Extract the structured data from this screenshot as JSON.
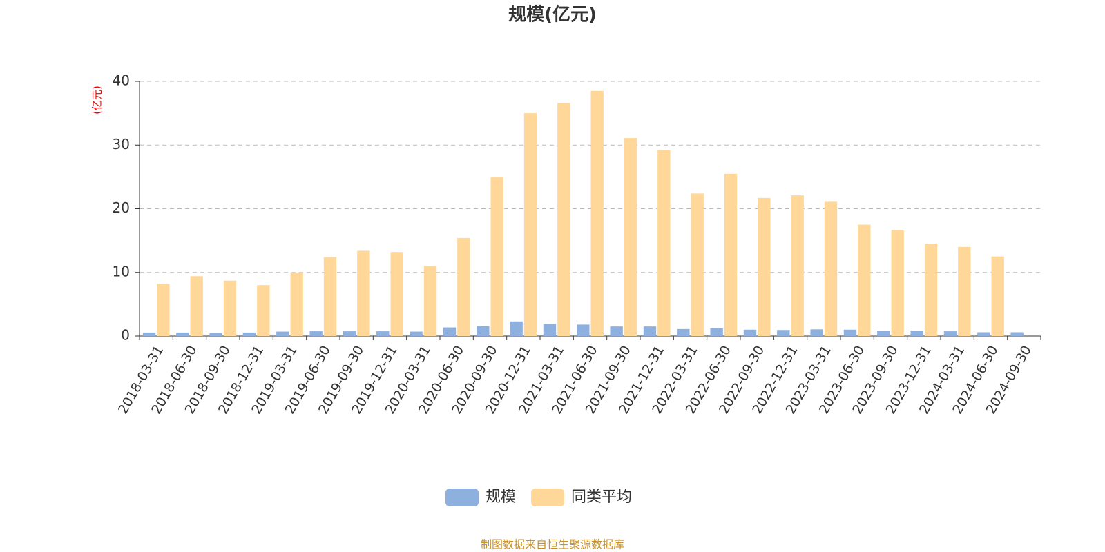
{
  "chart_data": {
    "type": "bar",
    "title": "规模(亿元)",
    "y_axis_label": "(亿元)",
    "source": "制图数据来自恒生聚源数据库",
    "categories": [
      "2018-03-31",
      "2018-06-30",
      "2018-09-30",
      "2018-12-31",
      "2019-03-31",
      "2019-06-30",
      "2019-09-30",
      "2019-12-31",
      "2020-03-31",
      "2020-06-30",
      "2020-09-30",
      "2020-12-31",
      "2021-03-31",
      "2021-06-30",
      "2021-09-30",
      "2021-12-31",
      "2022-03-31",
      "2022-06-30",
      "2022-09-30",
      "2022-12-31",
      "2023-03-31",
      "2023-06-30",
      "2023-09-30",
      "2023-12-31",
      "2024-03-31",
      "2024-06-30",
      "2024-09-30"
    ],
    "series": [
      {
        "name": "规模",
        "color": "#8eb0de",
        "values": [
          0.55,
          0.55,
          0.5,
          0.55,
          0.7,
          0.75,
          0.75,
          0.75,
          0.7,
          1.35,
          1.55,
          2.3,
          1.9,
          1.8,
          1.5,
          1.5,
          1.1,
          1.2,
          1.0,
          0.95,
          1.05,
          1.0,
          0.85,
          0.85,
          0.75,
          0.6,
          0.6
        ]
      },
      {
        "name": "同类平均",
        "color": "#ffd899",
        "values": [
          8.2,
          9.4,
          8.7,
          8.0,
          10.0,
          12.4,
          13.4,
          13.2,
          11.0,
          15.4,
          25.0,
          35.0,
          36.6,
          38.5,
          31.1,
          29.2,
          22.4,
          25.5,
          21.7,
          22.1,
          21.1,
          17.5,
          16.7,
          14.5,
          14.0,
          12.5,
          null
        ]
      }
    ],
    "ylim": [
      0,
      40
    ],
    "yticks": [
      0,
      10,
      20,
      30,
      40
    ],
    "grid": true
  }
}
